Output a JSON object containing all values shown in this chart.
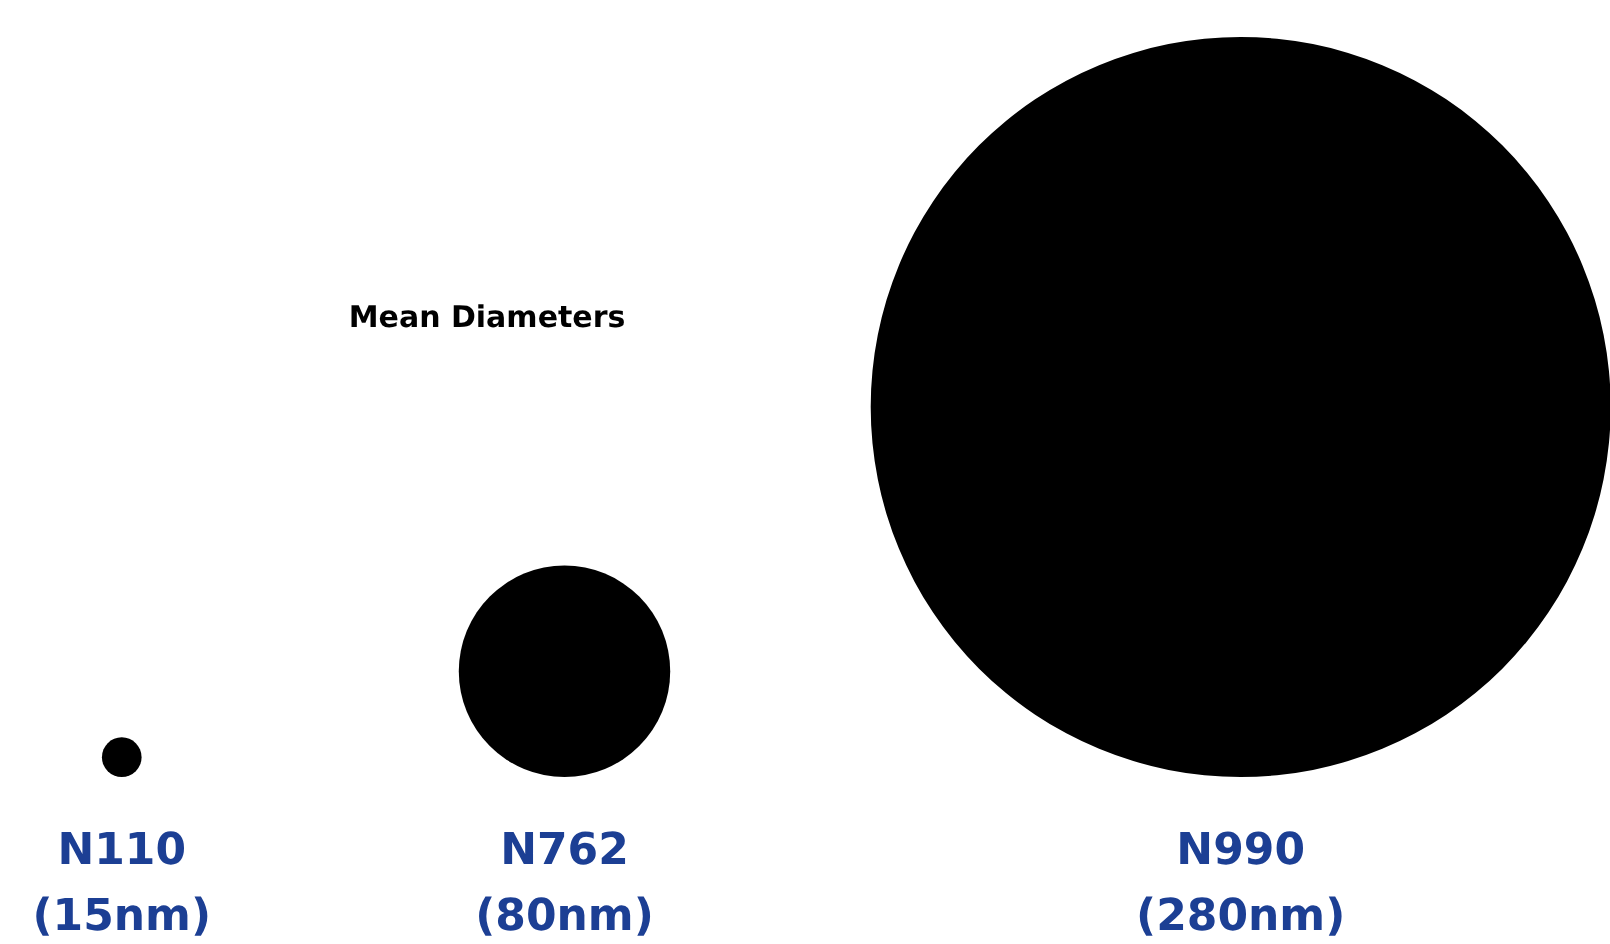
{
  "chart_data": {
    "type": "other",
    "title": "Mean Diameters",
    "categories": [
      "N110",
      "N762",
      "N990"
    ],
    "values": [
      15,
      80,
      280
    ],
    "value_labels": [
      "(15nm)",
      "(80nm)",
      "(280nm)"
    ],
    "color": "#000000"
  }
}
